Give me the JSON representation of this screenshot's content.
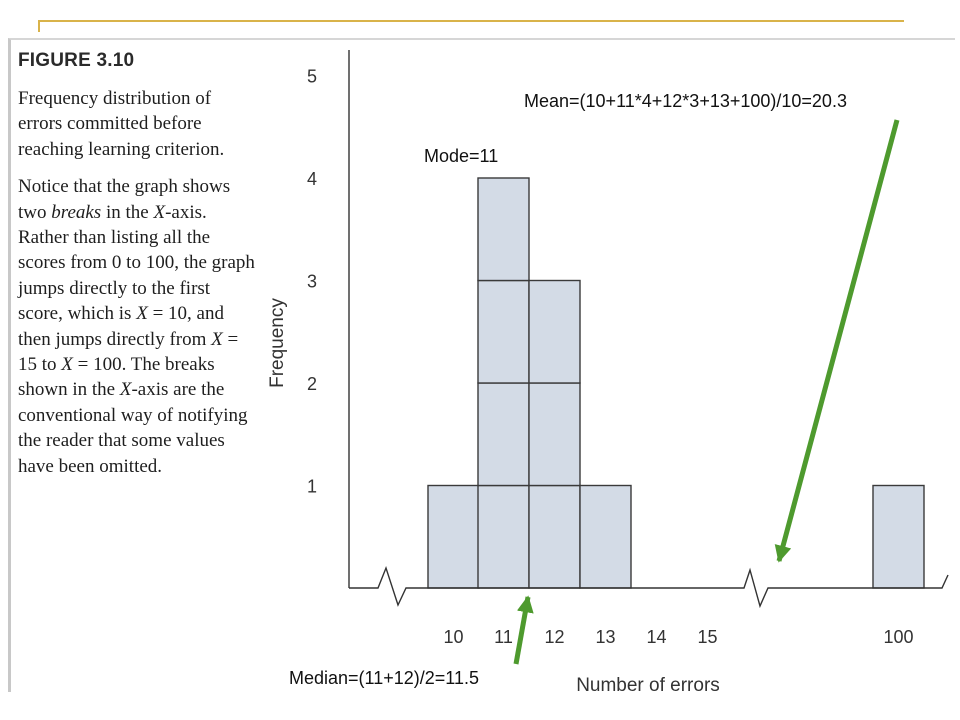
{
  "caption": {
    "figure_number": "FIGURE 3.10",
    "title": "Frequency distribution of errors committed before reaching learning criterion.",
    "body_parts": [
      {
        "text": "Notice that the graph shows two ",
        "italic": false
      },
      {
        "text": "breaks",
        "italic": true
      },
      {
        "text": " in the ",
        "italic": false
      },
      {
        "text": "X",
        "italic": true
      },
      {
        "text": "-axis. Rather than listing all the scores from 0 to 100, the graph jumps directly to the first score, which is ",
        "italic": false
      },
      {
        "text": "X",
        "italic": true
      },
      {
        "text": " = 10, and then jumps directly from ",
        "italic": false
      },
      {
        "text": "X",
        "italic": true
      },
      {
        "text": " = 15 to ",
        "italic": false
      },
      {
        "text": "X",
        "italic": true
      },
      {
        "text": " = 100. The breaks shown in the ",
        "italic": false
      },
      {
        "text": "X",
        "italic": true
      },
      {
        "text": "-axis are the conventional way of notifying the reader that some values have been omitted.",
        "italic": false
      }
    ]
  },
  "chart_data": {
    "type": "bar",
    "title": "",
    "xlabel": "Number of errors",
    "ylabel": "Frequency",
    "categories": [
      "10",
      "11",
      "12",
      "13",
      "14",
      "15",
      "100"
    ],
    "values": [
      1,
      4,
      3,
      1,
      0,
      0,
      1
    ],
    "ylim": [
      0,
      5
    ],
    "yticks": [
      "1",
      "2",
      "3",
      "4",
      "5"
    ],
    "grid": false,
    "axis_breaks": [
      "before 10",
      "between 15 and 100"
    ],
    "bar_fill": "#d3dbe6",
    "bar_stroke": "#3a3a3a",
    "arrow_color": "#4e9a2e",
    "annotations": {
      "mode": "Mode=11",
      "mean": "Mean=(10+11*4+12*3+13+100)/10=20.3",
      "median": "Median=(11+12)/2=11.5"
    }
  }
}
